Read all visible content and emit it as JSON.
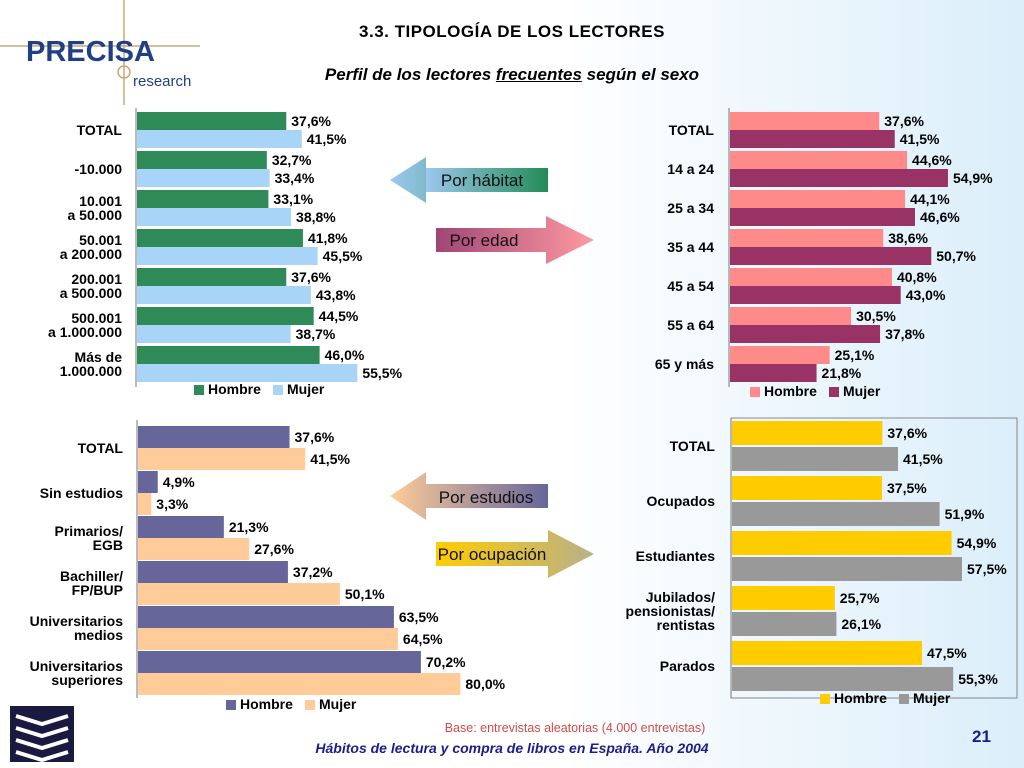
{
  "header": {
    "logo_main": "PRECISA",
    "logo_sub": "research",
    "title": "3.3. TIPOLOGÍA DE LOS LECTORES",
    "subtitle_pre": "Perfil de los lectores ",
    "subtitle_u": "frecuentes",
    "subtitle_post": " según el sexo"
  },
  "arrows": {
    "habitat": "Por hábitat",
    "edad": "Por edad",
    "estudios": "Por estudios",
    "ocupacion": "Por ocupación"
  },
  "footer": {
    "base": "Base: entrevistas aleatorias (4.000 entrevistas)",
    "title": "Hábitos de lectura y compra de libros en España. Año 2004",
    "page": "21"
  },
  "colors": {
    "habitat": [
      "#2e8b57",
      "#a8d4f8"
    ],
    "edad": [
      "#ff8a8a",
      "#993366"
    ],
    "estudios": [
      "#66669a",
      "#ffcc99"
    ],
    "ocupacion": [
      "#ffcc00",
      "#999999"
    ]
  },
  "chart_data": [
    {
      "id": "habitat",
      "type": "bar",
      "orientation": "horizontal",
      "categories": [
        [
          "TOTAL"
        ],
        [
          "-10.000"
        ],
        [
          "10.001",
          "a 50.000"
        ],
        [
          "50.001",
          "a 200.000"
        ],
        [
          "200.001",
          "a 500.000"
        ],
        [
          "500.001",
          "a 1.000.000"
        ],
        [
          "Más de",
          "1.000.000"
        ]
      ],
      "series": [
        {
          "name": "Hombre",
          "values": [
            37.6,
            32.7,
            33.1,
            41.8,
            37.6,
            44.5,
            46.0
          ],
          "labels": [
            "37,6%",
            "32,7%",
            "33,1%",
            "41,8%",
            "37,6%",
            "44,5%",
            "46,0%"
          ]
        },
        {
          "name": "Mujer",
          "values": [
            41.5,
            33.4,
            38.8,
            45.5,
            43.8,
            38.7,
            55.5
          ],
          "labels": [
            "41,5%",
            "33,4%",
            "38,8%",
            "45,5%",
            "43,8%",
            "38,7%",
            "55,5%"
          ]
        }
      ],
      "legend": "bottom",
      "xlim": [
        0,
        100
      ]
    },
    {
      "id": "edad",
      "type": "bar",
      "orientation": "horizontal",
      "categories": [
        [
          "TOTAL"
        ],
        [
          "14 a 24"
        ],
        [
          "25 a 34"
        ],
        [
          "35 a 44"
        ],
        [
          "45 a 54"
        ],
        [
          "55 a 64"
        ],
        [
          "65 y más"
        ]
      ],
      "series": [
        {
          "name": "Hombre",
          "values": [
            37.6,
            44.6,
            44.1,
            38.6,
            40.8,
            30.5,
            25.1
          ],
          "labels": [
            "37,6%",
            "44,6%",
            "44,1%",
            "38,6%",
            "40,8%",
            "30,5%",
            "25,1%"
          ]
        },
        {
          "name": "Mujer",
          "values": [
            41.5,
            54.9,
            46.6,
            50.7,
            43.0,
            37.8,
            21.8
          ],
          "labels": [
            "41,5%",
            "54,9%",
            "46,6%",
            "50,7%",
            "43,0%",
            "37,8%",
            "21,8%"
          ]
        }
      ],
      "legend": "bottom",
      "xlim": [
        0,
        100
      ]
    },
    {
      "id": "estudios",
      "type": "bar",
      "orientation": "horizontal",
      "categories": [
        [
          "TOTAL"
        ],
        [
          "Sin estudios"
        ],
        [
          "Primarios/",
          "EGB"
        ],
        [
          "Bachiller/",
          "FP/BUP"
        ],
        [
          "Universitarios",
          "medios"
        ],
        [
          "Universitarios",
          "superiores"
        ]
      ],
      "series": [
        {
          "name": "Hombre",
          "values": [
            37.6,
            4.9,
            21.3,
            37.2,
            63.5,
            70.2
          ],
          "labels": [
            "37,6%",
            "4,9%",
            "21,3%",
            "37,2%",
            "63,5%",
            "70,2%"
          ]
        },
        {
          "name": "Mujer",
          "values": [
            41.5,
            3.3,
            27.6,
            50.1,
            64.5,
            80.0
          ],
          "labels": [
            "41,5%",
            "3,3%",
            "27,6%",
            "50,1%",
            "64,5%",
            "80,0%"
          ]
        }
      ],
      "legend": "bottom",
      "xlim": [
        0,
        100
      ]
    },
    {
      "id": "ocupacion",
      "type": "bar",
      "orientation": "horizontal",
      "categories": [
        [
          "TOTAL"
        ],
        [
          "Ocupados"
        ],
        [
          "Estudiantes"
        ],
        [
          "Jubilados/",
          "pensionistas/",
          "rentistas"
        ],
        [
          "Parados"
        ]
      ],
      "series": [
        {
          "name": "Hombre",
          "values": [
            37.6,
            37.5,
            54.9,
            25.7,
            47.5
          ],
          "labels": [
            "37,6%",
            "37,5%",
            "54,9%",
            "25,7%",
            "47,5%"
          ]
        },
        {
          "name": "Mujer",
          "values": [
            41.5,
            51.9,
            57.5,
            26.1,
            55.3
          ],
          "labels": [
            "41,5%",
            "51,9%",
            "57,5%",
            "26,1%",
            "55,3%"
          ]
        }
      ],
      "legend": "bottom",
      "xlim": [
        0,
        100
      ]
    }
  ]
}
